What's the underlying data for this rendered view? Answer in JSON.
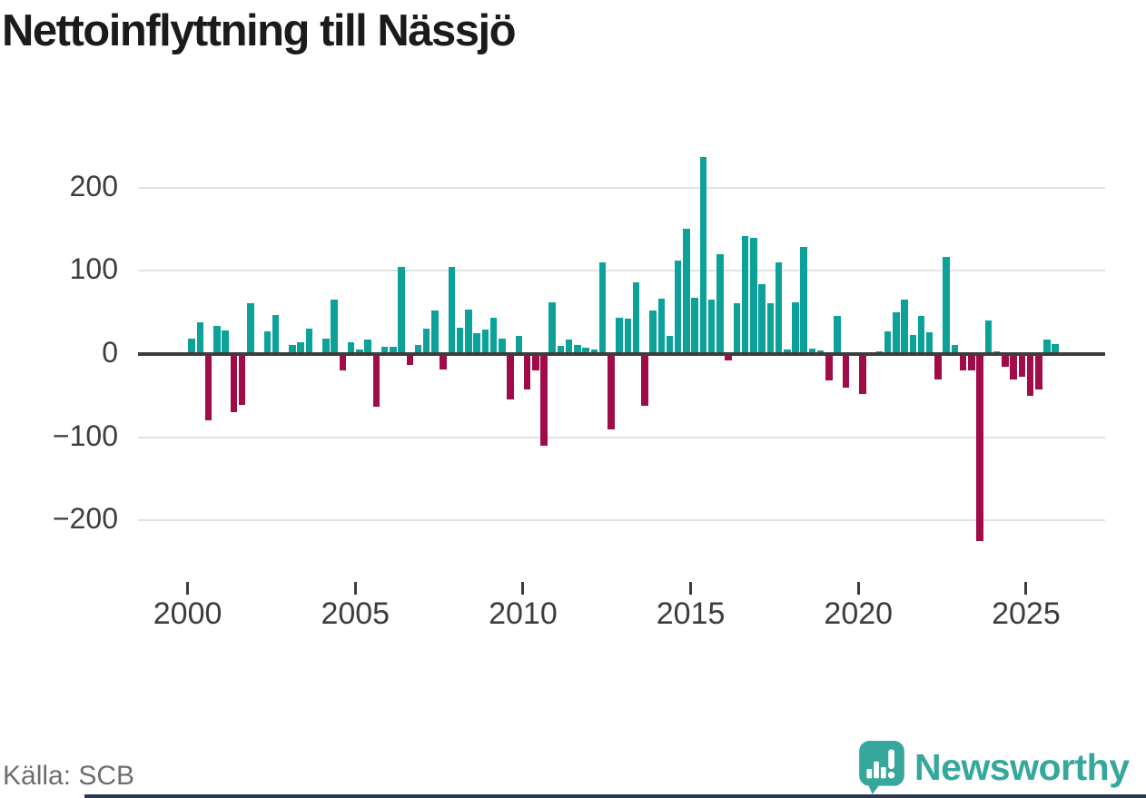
{
  "title": "Nettoinflyttning till Nässjö",
  "source_label": "Källa: SCB",
  "brand": {
    "name": "Newsworthy"
  },
  "colors": {
    "positive_bar": "#0ca29a",
    "negative_bar": "#a00c4a",
    "axis_line": "#3d3d3d",
    "gridline": "#e2e2e2",
    "tick_label": "#3d3d3d",
    "source_text": "#6d6d6d",
    "brand_teal": "#35a79c",
    "bottom_strip": "#2b3950"
  },
  "chart_data": {
    "type": "bar",
    "title": "Nettoinflyttning till Nässjö",
    "xlabel": "",
    "ylabel": "",
    "ylim": [
      -250,
      250
    ],
    "grid": "horizontal",
    "legend": "none",
    "frequency": "quarterly",
    "y_axis": {
      "ticks": [
        {
          "v": 200,
          "label": "200"
        },
        {
          "v": 100,
          "label": "100"
        },
        {
          "v": 0,
          "label": "0"
        },
        {
          "v": -100,
          "label": "−100"
        },
        {
          "v": -200,
          "label": "−200"
        }
      ]
    },
    "x_axis": {
      "start_year": 2000,
      "ticks": [
        {
          "year": 2000,
          "label": "2000"
        },
        {
          "year": 2005,
          "label": "2005"
        },
        {
          "year": 2010,
          "label": "2010"
        },
        {
          "year": 2015,
          "label": "2015"
        },
        {
          "year": 2020,
          "label": "2020"
        },
        {
          "year": 2025,
          "label": "2025"
        }
      ]
    },
    "categories": [
      "2000 Q1",
      "2000 Q2",
      "2000 Q3",
      "2000 Q4",
      "2001 Q1",
      "2001 Q2",
      "2001 Q3",
      "2001 Q4",
      "2002 Q1",
      "2002 Q2",
      "2002 Q3",
      "2002 Q4",
      "2003 Q1",
      "2003 Q2",
      "2003 Q3",
      "2003 Q4",
      "2004 Q1",
      "2004 Q2",
      "2004 Q3",
      "2004 Q4",
      "2005 Q1",
      "2005 Q2",
      "2005 Q3",
      "2005 Q4",
      "2006 Q1",
      "2006 Q2",
      "2006 Q3",
      "2006 Q4",
      "2007 Q1",
      "2007 Q2",
      "2007 Q3",
      "2007 Q4",
      "2008 Q1",
      "2008 Q2",
      "2008 Q3",
      "2008 Q4",
      "2009 Q1",
      "2009 Q2",
      "2009 Q3",
      "2009 Q4",
      "2010 Q1",
      "2010 Q2",
      "2010 Q3",
      "2010 Q4",
      "2011 Q1",
      "2011 Q2",
      "2011 Q3",
      "2011 Q4",
      "2012 Q1",
      "2012 Q2",
      "2012 Q3",
      "2012 Q4",
      "2013 Q1",
      "2013 Q2",
      "2013 Q3",
      "2013 Q4",
      "2014 Q1",
      "2014 Q2",
      "2014 Q3",
      "2014 Q4",
      "2015 Q1",
      "2015 Q2",
      "2015 Q3",
      "2015 Q4",
      "2016 Q1",
      "2016 Q2",
      "2016 Q3",
      "2016 Q4",
      "2017 Q1",
      "2017 Q2",
      "2017 Q3",
      "2017 Q4",
      "2018 Q1",
      "2018 Q2",
      "2018 Q3",
      "2018 Q4",
      "2019 Q1",
      "2019 Q2",
      "2019 Q3",
      "2019 Q4",
      "2020 Q1",
      "2020 Q2",
      "2020 Q3",
      "2020 Q4",
      "2021 Q1",
      "2021 Q2",
      "2021 Q3",
      "2021 Q4",
      "2022 Q1",
      "2022 Q2",
      "2022 Q3",
      "2022 Q4",
      "2023 Q1",
      "2023 Q2",
      "2023 Q3",
      "2023 Q4",
      "2024 Q1",
      "2024 Q2",
      "2024 Q3",
      "2024 Q4",
      "2025 Q1",
      "2025 Q2",
      "2025 Q3",
      "2025 Q4"
    ],
    "series": [
      {
        "name": "Nettoinflyttning",
        "values": [
          18,
          38,
          -80,
          34,
          28,
          -70,
          -61,
          61,
          0,
          27,
          47,
          0,
          11,
          14,
          31,
          0,
          19,
          65,
          -20,
          14,
          5,
          17,
          -63,
          9,
          9,
          105,
          -13,
          11,
          31,
          52,
          -19,
          105,
          32,
          53,
          25,
          29,
          44,
          18,
          -55,
          22,
          -43,
          -20,
          -110,
          62,
          10,
          17,
          11,
          8,
          5,
          110,
          -90,
          44,
          43,
          86,
          -62,
          52,
          66,
          22,
          112,
          150,
          68,
          237,
          65,
          120,
          -8,
          61,
          142,
          140,
          84,
          61,
          110,
          5,
          62,
          129,
          7,
          4,
          -32,
          46,
          -40,
          0,
          -48,
          0,
          3,
          27,
          50,
          65,
          23,
          46,
          26,
          -31,
          117,
          11,
          -20,
          -20,
          -225,
          40,
          3,
          -15,
          -30,
          -27,
          -50,
          -43,
          17,
          12
        ]
      }
    ]
  }
}
